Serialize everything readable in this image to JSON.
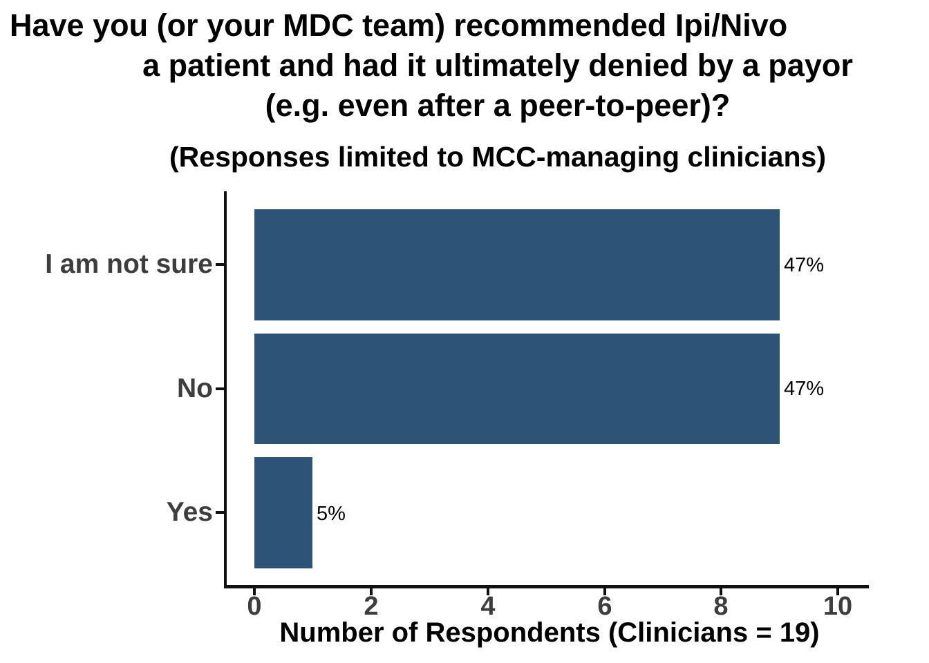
{
  "chart_data": {
    "type": "bar",
    "orientation": "horizontal",
    "title": "Have you (or your MDC team) recommended Ipi/Nivo a patient and had it ultimately denied by a payor (e.g. even after a peer-to-peer)?",
    "title_lines": [
      "Have you (or your MDC team) recommended Ipi/Nivo",
      "a patient and had it ultimately denied by a payor",
      "(e.g. even after a peer-to-peer)?"
    ],
    "subtitle": "(Responses limited to MCC-managing clinicians)",
    "categories": [
      "I am not sure",
      "No",
      "Yes"
    ],
    "values": [
      9,
      9,
      1
    ],
    "value_labels": [
      "47%",
      "47%",
      "5%"
    ],
    "xlabel": "Number of Respondents (Clinicians = 19)",
    "ylabel": "",
    "x_ticks": [
      "0",
      "2",
      "4",
      "6",
      "8",
      "10"
    ],
    "xlim": [
      0,
      10.5
    ],
    "grid": false,
    "legend": false,
    "bar_color": "#2D5377",
    "axis_color": "#111111",
    "axis_text_color": "#3d3d3d",
    "title_color": "#000000"
  }
}
